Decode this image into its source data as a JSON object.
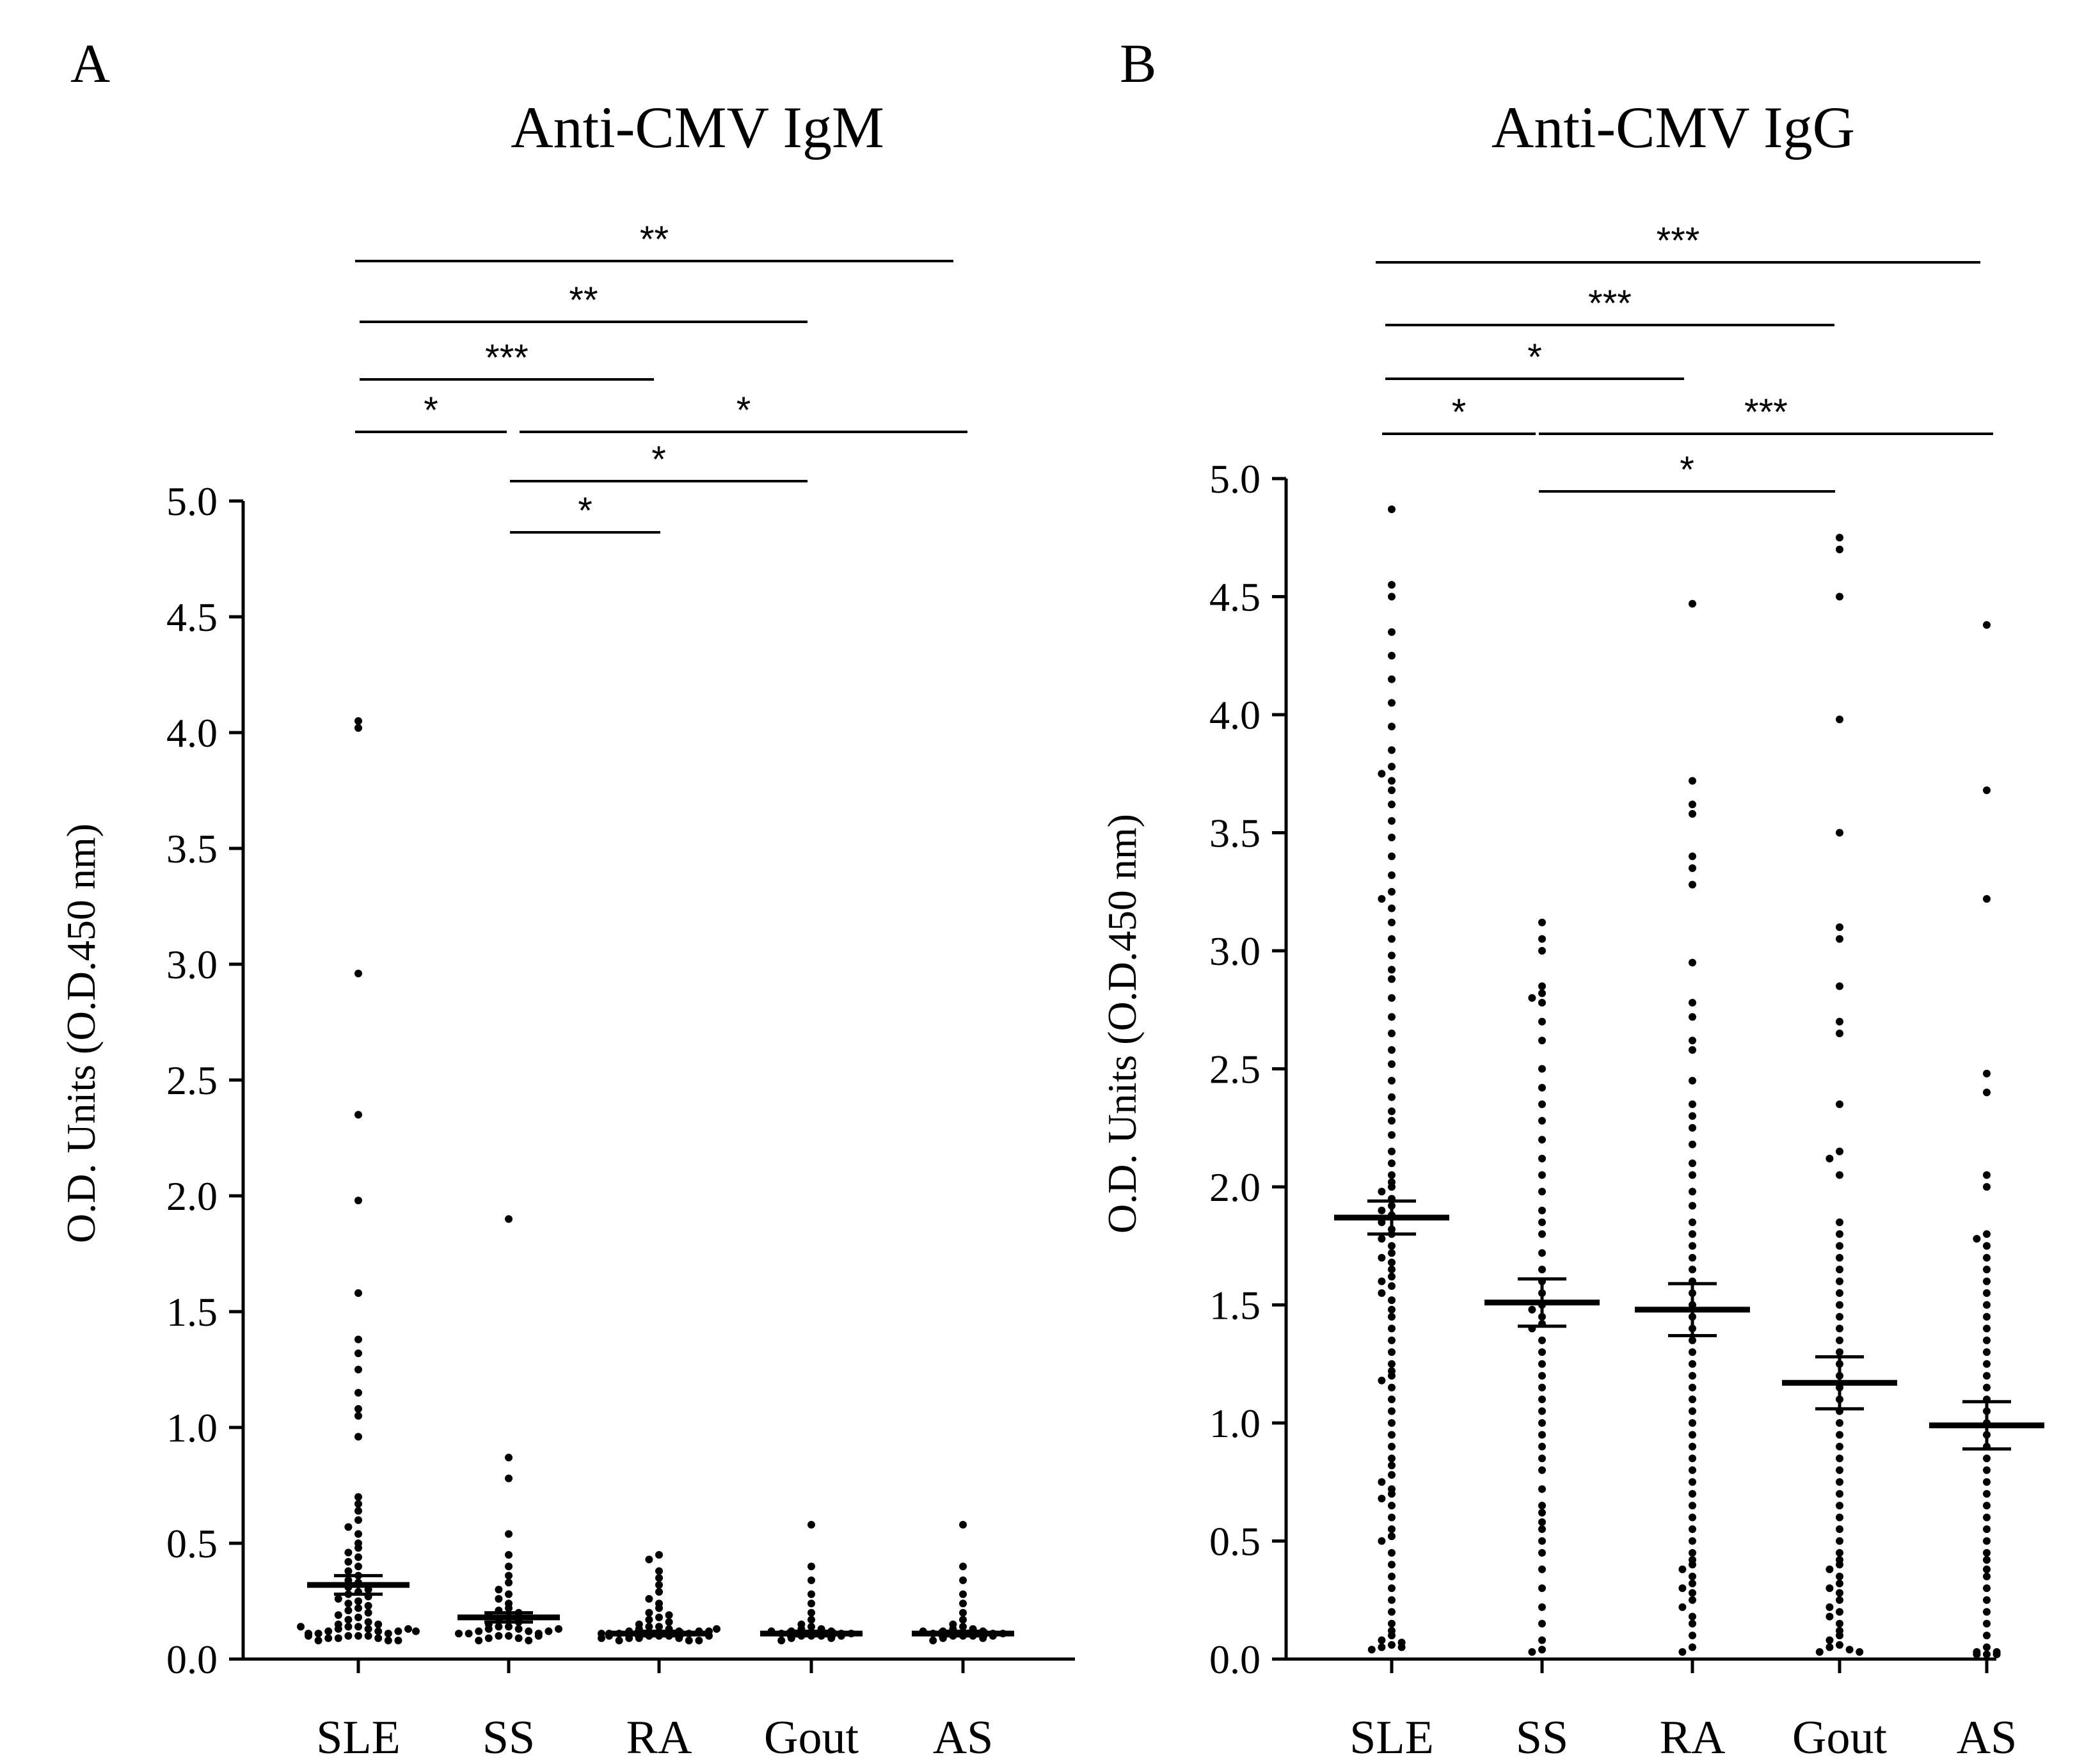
{
  "chart_data": [
    {
      "type": "scatter",
      "panel_label": "A",
      "title": "Anti-CMV IgM",
      "xlabel": "",
      "ylabel": "O.D. Units (O.D.450 nm)",
      "categories": [
        "SLE",
        "SS",
        "RA",
        "Gout",
        "AS"
      ],
      "ylim": [
        0.0,
        5.0
      ],
      "yticks": [
        "0.0",
        "0.5",
        "1.0",
        "1.5",
        "2.0",
        "2.5",
        "3.0",
        "3.5",
        "4.0",
        "4.5",
        "5.0"
      ],
      "means": [
        0.32,
        0.18,
        0.11,
        0.11,
        0.11
      ],
      "sem": [
        0.04,
        0.02,
        0.01,
        0.01,
        0.01
      ],
      "series": [
        {
          "name": "SLE",
          "values": [
            4.05,
            4.02,
            2.96,
            2.35,
            1.98,
            1.58,
            1.38,
            1.32,
            1.25,
            1.15,
            1.08,
            1.05,
            0.96,
            0.7,
            0.67,
            0.64,
            0.6,
            0.57,
            0.54,
            0.5,
            0.48,
            0.46,
            0.44,
            0.42,
            0.4,
            0.38,
            0.36,
            0.34,
            0.33,
            0.31,
            0.3,
            0.29,
            0.28,
            0.27,
            0.26,
            0.25,
            0.24,
            0.23,
            0.22,
            0.21,
            0.2,
            0.19,
            0.18,
            0.17,
            0.16,
            0.15,
            0.15,
            0.14,
            0.14,
            0.13,
            0.13,
            0.12,
            0.12,
            0.11,
            0.11,
            0.1,
            0.1,
            0.1,
            0.09,
            0.09,
            0.09,
            0.08,
            0.08,
            0.08,
            0.12,
            0.11,
            0.1,
            0.13,
            0.14,
            0.12
          ]
        },
        {
          "name": "SS",
          "values": [
            1.9,
            0.87,
            0.78,
            0.54,
            0.45,
            0.4,
            0.36,
            0.33,
            0.3,
            0.28,
            0.26,
            0.24,
            0.22,
            0.21,
            0.2,
            0.19,
            0.18,
            0.17,
            0.16,
            0.15,
            0.14,
            0.14,
            0.13,
            0.13,
            0.12,
            0.12,
            0.11,
            0.11,
            0.1,
            0.1,
            0.09,
            0.09,
            0.08,
            0.08,
            0.12,
            0.11,
            0.1,
            0.13
          ]
        },
        {
          "name": "RA",
          "values": [
            0.45,
            0.43,
            0.38,
            0.35,
            0.32,
            0.29,
            0.26,
            0.24,
            0.22,
            0.2,
            0.19,
            0.18,
            0.17,
            0.16,
            0.15,
            0.14,
            0.14,
            0.13,
            0.13,
            0.12,
            0.12,
            0.11,
            0.11,
            0.1,
            0.1,
            0.1,
            0.09,
            0.09,
            0.09,
            0.08,
            0.08,
            0.08,
            0.12,
            0.11,
            0.1,
            0.12,
            0.11,
            0.1,
            0.09,
            0.13
          ]
        },
        {
          "name": "Gout",
          "values": [
            0.58,
            0.4,
            0.34,
            0.28,
            0.24,
            0.2,
            0.17,
            0.15,
            0.14,
            0.13,
            0.13,
            0.12,
            0.12,
            0.11,
            0.11,
            0.1,
            0.1,
            0.1,
            0.09,
            0.09,
            0.08,
            0.12,
            0.11,
            0.1
          ]
        },
        {
          "name": "AS",
          "values": [
            0.58,
            0.4,
            0.34,
            0.28,
            0.24,
            0.2,
            0.17,
            0.15,
            0.14,
            0.13,
            0.13,
            0.12,
            0.12,
            0.11,
            0.11,
            0.1,
            0.1,
            0.1,
            0.09,
            0.09,
            0.08,
            0.12,
            0.11,
            0.1
          ]
        }
      ],
      "significance": [
        {
          "from": "SLE",
          "to": "AS",
          "label": "**"
        },
        {
          "from": "SLE",
          "to": "Gout",
          "label": "**"
        },
        {
          "from": "SLE",
          "to": "RA",
          "label": "***"
        },
        {
          "from": "SLE",
          "to": "SS",
          "label": "*"
        },
        {
          "from": "SS",
          "to": "AS",
          "label": "*"
        },
        {
          "from": "SS",
          "to": "Gout",
          "label": "*"
        },
        {
          "from": "SS",
          "to": "RA",
          "label": "*"
        }
      ]
    },
    {
      "type": "scatter",
      "panel_label": "B",
      "title": "Anti-CMV IgG",
      "xlabel": "",
      "ylabel": "O.D. Units (O.D.450 nm)",
      "categories": [
        "SLE",
        "SS",
        "RA",
        "Gout",
        "AS"
      ],
      "ylim": [
        0.0,
        5.0
      ],
      "yticks": [
        "0.0",
        "0.5",
        "1.0",
        "1.5",
        "2.0",
        "2.5",
        "3.0",
        "3.5",
        "4.0",
        "4.5",
        "5.0"
      ],
      "means": [
        1.87,
        1.51,
        1.48,
        1.17,
        0.99
      ],
      "sem": [
        0.07,
        0.1,
        0.11,
        0.11,
        0.1
      ],
      "series": [
        {
          "name": "SLE",
          "values": [
            4.87,
            4.55,
            4.5,
            4.35,
            4.25,
            4.15,
            4.05,
            3.95,
            3.85,
            3.78,
            3.75,
            3.72,
            3.68,
            3.62,
            3.55,
            3.48,
            3.4,
            3.32,
            3.25,
            3.22,
            3.18,
            3.12,
            3.05,
            2.98,
            2.92,
            2.88,
            2.8,
            2.72,
            2.65,
            2.58,
            2.52,
            2.45,
            2.38,
            2.32,
            2.28,
            2.22,
            2.15,
            2.1,
            2.05,
            2.02,
            2.0,
            1.98,
            1.95,
            1.92,
            1.9,
            1.88,
            1.85,
            1.82,
            1.8,
            1.78,
            1.75,
            1.72,
            1.7,
            1.68,
            1.65,
            1.62,
            1.6,
            1.58,
            1.55,
            1.52,
            1.48,
            1.45,
            1.4,
            1.35,
            1.3,
            1.25,
            1.22,
            1.2,
            1.18,
            1.15,
            1.1,
            1.05,
            1.0,
            0.95,
            0.9,
            0.85,
            0.82,
            0.78,
            0.75,
            0.72,
            0.7,
            0.68,
            0.65,
            0.6,
            0.55,
            0.52,
            0.5,
            0.45,
            0.4,
            0.35,
            0.3,
            0.25,
            0.2,
            0.15,
            0.12,
            0.1,
            0.08,
            0.07,
            0.06,
            0.05,
            0.05,
            0.04
          ]
        },
        {
          "name": "SS",
          "values": [
            3.12,
            3.05,
            3.0,
            2.85,
            2.82,
            2.8,
            2.78,
            2.7,
            2.62,
            2.5,
            2.42,
            2.35,
            2.28,
            2.2,
            2.12,
            2.05,
            1.98,
            1.9,
            1.85,
            1.8,
            1.72,
            1.65,
            1.6,
            1.55,
            1.5,
            1.48,
            1.45,
            1.42,
            1.4,
            1.35,
            1.3,
            1.25,
            1.2,
            1.15,
            1.1,
            1.05,
            1.0,
            0.95,
            0.9,
            0.85,
            0.8,
            0.72,
            0.65,
            0.62,
            0.58,
            0.55,
            0.5,
            0.45,
            0.38,
            0.3,
            0.22,
            0.15,
            0.08,
            0.04,
            0.03
          ]
        },
        {
          "name": "RA",
          "values": [
            4.47,
            3.72,
            3.62,
            3.58,
            3.4,
            3.35,
            3.28,
            2.95,
            2.78,
            2.72,
            2.62,
            2.58,
            2.45,
            2.35,
            2.3,
            2.25,
            2.18,
            2.1,
            2.05,
            1.98,
            1.92,
            1.85,
            1.8,
            1.75,
            1.7,
            1.65,
            1.6,
            1.55,
            1.5,
            1.45,
            1.4,
            1.35,
            1.3,
            1.25,
            1.2,
            1.15,
            1.1,
            1.05,
            1.0,
            0.95,
            0.9,
            0.85,
            0.8,
            0.75,
            0.7,
            0.65,
            0.6,
            0.55,
            0.5,
            0.45,
            0.42,
            0.4,
            0.38,
            0.35,
            0.32,
            0.3,
            0.28,
            0.25,
            0.22,
            0.18,
            0.15,
            0.1,
            0.05,
            0.03
          ]
        },
        {
          "name": "Gout",
          "values": [
            4.75,
            4.7,
            4.5,
            3.98,
            3.5,
            3.1,
            3.05,
            2.85,
            2.7,
            2.65,
            2.35,
            2.15,
            2.12,
            2.05,
            1.85,
            1.8,
            1.75,
            1.7,
            1.65,
            1.6,
            1.55,
            1.5,
            1.45,
            1.4,
            1.35,
            1.3,
            1.25,
            1.2,
            1.15,
            1.1,
            1.05,
            1.0,
            0.95,
            0.9,
            0.85,
            0.8,
            0.75,
            0.7,
            0.65,
            0.6,
            0.55,
            0.5,
            0.45,
            0.42,
            0.4,
            0.38,
            0.35,
            0.32,
            0.3,
            0.28,
            0.25,
            0.22,
            0.2,
            0.18,
            0.15,
            0.12,
            0.1,
            0.08,
            0.06,
            0.05,
            0.04,
            0.03,
            0.03
          ]
        },
        {
          "name": "AS",
          "values": [
            4.38,
            3.68,
            3.22,
            2.48,
            2.4,
            2.05,
            2.0,
            1.8,
            1.78,
            1.75,
            1.7,
            1.65,
            1.6,
            1.55,
            1.5,
            1.45,
            1.4,
            1.35,
            1.3,
            1.25,
            1.2,
            1.15,
            1.1,
            1.05,
            1.0,
            0.95,
            0.9,
            0.85,
            0.8,
            0.75,
            0.7,
            0.65,
            0.6,
            0.55,
            0.5,
            0.45,
            0.42,
            0.38,
            0.35,
            0.3,
            0.25,
            0.2,
            0.15,
            0.1,
            0.05,
            0.03,
            0.02,
            0.02,
            0.03,
            0.02
          ]
        }
      ],
      "significance": [
        {
          "from": "SLE",
          "to": "AS",
          "label": "***"
        },
        {
          "from": "SLE",
          "to": "Gout",
          "label": "***"
        },
        {
          "from": "SLE",
          "to": "RA",
          "label": "*"
        },
        {
          "from": "SLE",
          "to": "SS",
          "label": "*"
        },
        {
          "from": "SS",
          "to": "AS",
          "label": "***"
        },
        {
          "from": "SS",
          "to": "Gout",
          "label": "*"
        }
      ]
    }
  ]
}
